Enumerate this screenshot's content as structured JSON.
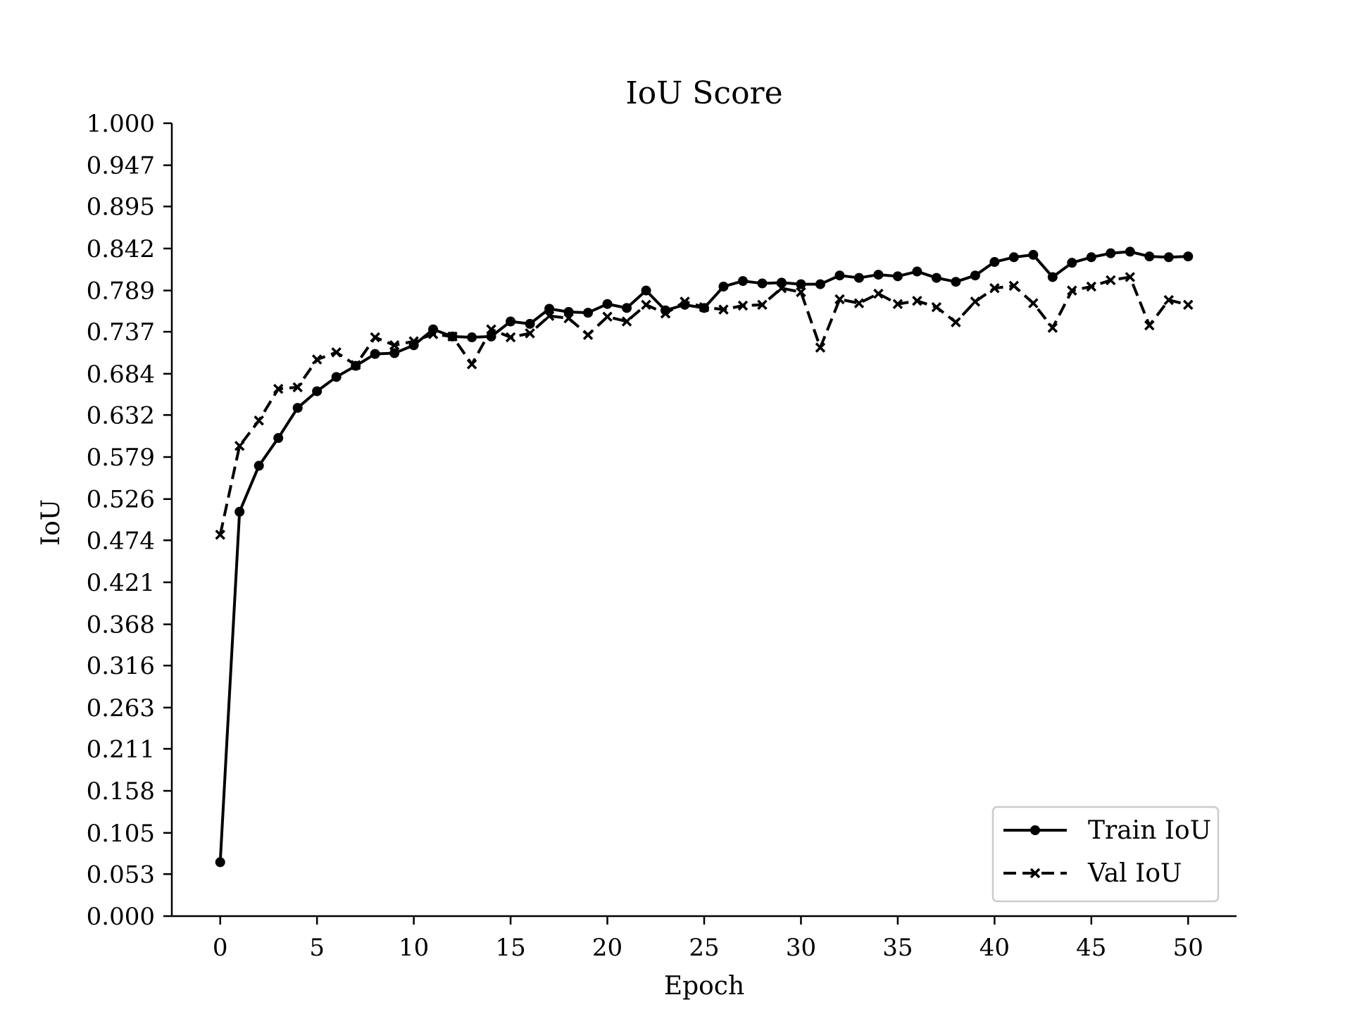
{
  "chart_data": {
    "type": "line",
    "title": "IoU Score",
    "xlabel": "Epoch",
    "ylabel": "IoU",
    "xlim": [
      -2.5,
      52.5
    ],
    "ylim": [
      0.0,
      1.0
    ],
    "xticks": [
      0,
      5,
      10,
      15,
      20,
      25,
      30,
      35,
      40,
      45,
      50
    ],
    "yticks": [
      "0.000",
      "0.053",
      "0.105",
      "0.158",
      "0.211",
      "0.263",
      "0.316",
      "0.368",
      "0.421",
      "0.474",
      "0.526",
      "0.579",
      "0.632",
      "0.684",
      "0.737",
      "0.789",
      "0.842",
      "0.895",
      "0.947",
      "1.000"
    ],
    "grid": false,
    "legend_position": "lower-right",
    "x": [
      0,
      1,
      2,
      3,
      4,
      5,
      6,
      7,
      8,
      9,
      10,
      11,
      12,
      13,
      14,
      15,
      16,
      17,
      18,
      19,
      20,
      21,
      22,
      23,
      24,
      25,
      26,
      27,
      28,
      29,
      30,
      31,
      32,
      33,
      34,
      35,
      36,
      37,
      38,
      39,
      40,
      41,
      42,
      43,
      44,
      45,
      46,
      47,
      48,
      49,
      50
    ],
    "series": [
      {
        "name": "Train IoU",
        "line_style": "solid",
        "marker": "circle",
        "color": "#000000",
        "values": [
          0.068,
          0.51,
          0.568,
          0.603,
          0.641,
          0.662,
          0.68,
          0.694,
          0.709,
          0.71,
          0.72,
          0.74,
          0.731,
          0.73,
          0.731,
          0.75,
          0.747,
          0.766,
          0.762,
          0.761,
          0.772,
          0.767,
          0.789,
          0.764,
          0.771,
          0.767,
          0.794,
          0.801,
          0.798,
          0.799,
          0.797,
          0.797,
          0.808,
          0.805,
          0.809,
          0.807,
          0.813,
          0.805,
          0.8,
          0.808,
          0.825,
          0.831,
          0.834,
          0.806,
          0.824,
          0.831,
          0.836,
          0.838,
          0.832,
          0.831,
          0.832
        ]
      },
      {
        "name": "Val IoU",
        "line_style": "dashed",
        "marker": "x",
        "color": "#000000",
        "values": [
          0.481,
          0.593,
          0.625,
          0.665,
          0.667,
          0.702,
          0.711,
          0.695,
          0.73,
          0.72,
          0.725,
          0.734,
          0.731,
          0.696,
          0.74,
          0.73,
          0.735,
          0.757,
          0.754,
          0.733,
          0.756,
          0.75,
          0.771,
          0.76,
          0.775,
          0.768,
          0.765,
          0.77,
          0.771,
          0.792,
          0.787,
          0.717,
          0.778,
          0.773,
          0.785,
          0.772,
          0.776,
          0.768,
          0.749,
          0.775,
          0.792,
          0.795,
          0.773,
          0.742,
          0.789,
          0.794,
          0.802,
          0.806,
          0.745,
          0.777,
          0.771
        ]
      }
    ]
  }
}
